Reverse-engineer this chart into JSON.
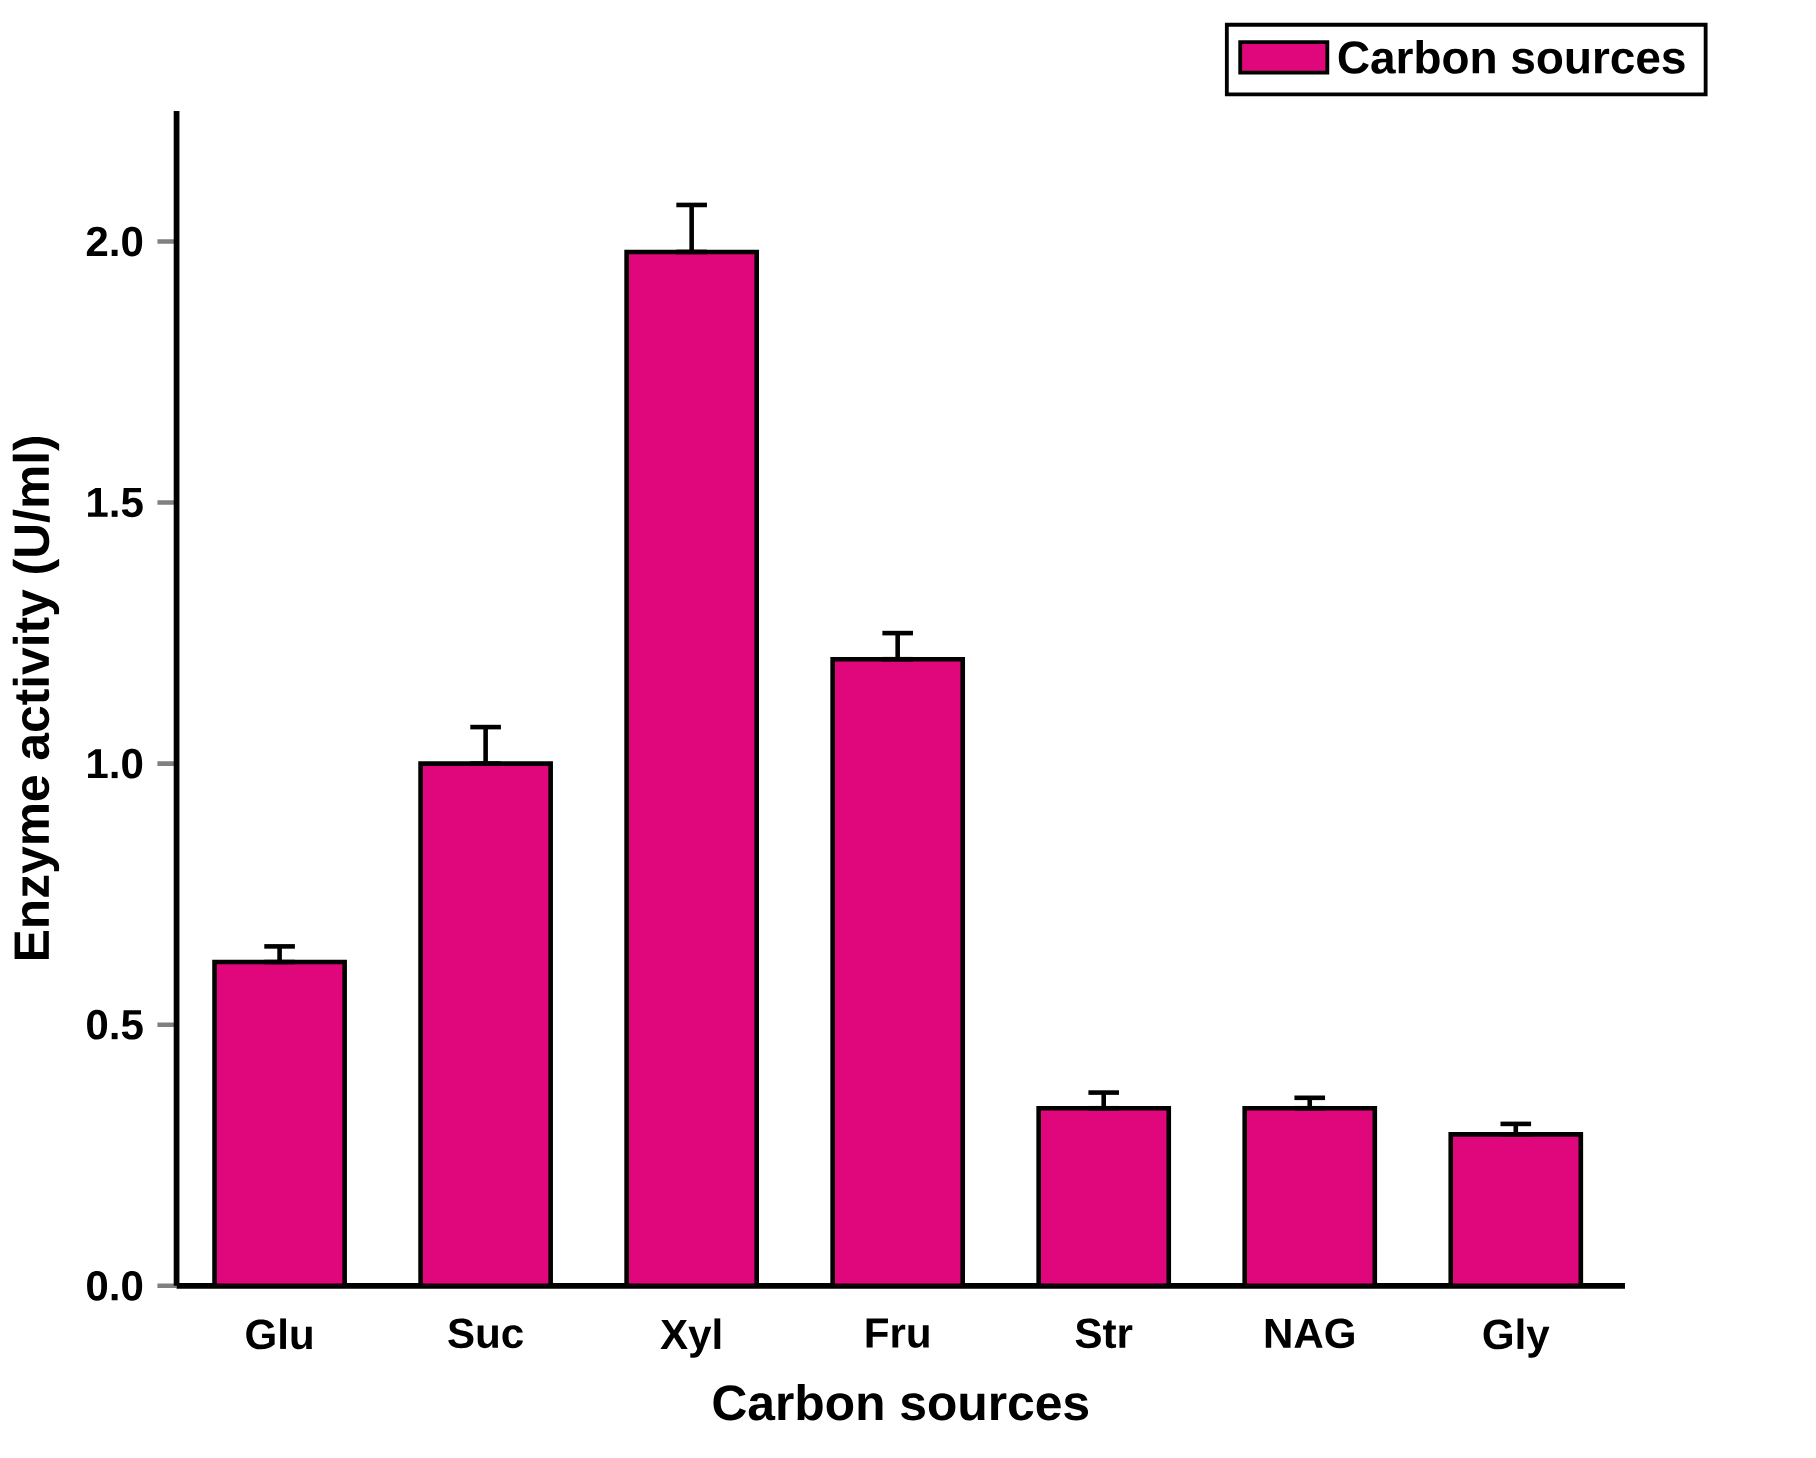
{
  "chart_data": {
    "type": "bar",
    "xlabel": "Carbon sources",
    "ylabel": "Enzyme activity (U/ml)",
    "categories": [
      "Glu",
      "Suc",
      "Xyl",
      "Fru",
      "Str",
      "NAG",
      "Gly"
    ],
    "series": [
      {
        "name": "Carbon sources",
        "color": "#e0077d",
        "values": [
          0.62,
          1.0,
          1.98,
          1.2,
          0.34,
          0.34,
          0.29
        ],
        "errors": [
          [
            0.62,
            0.65
          ],
          [
            1.0,
            1.07
          ],
          [
            1.98,
            2.07
          ],
          [
            1.2,
            1.25
          ],
          [
            0.34,
            0.37
          ],
          [
            0.34,
            0.36
          ],
          [
            0.29,
            0.31
          ]
        ]
      }
    ],
    "ylim": [
      0,
      2.25
    ],
    "yticks": [
      {
        "value": 0.0,
        "label": "0.0"
      },
      {
        "value": 0.5,
        "label": "0.5"
      },
      {
        "value": 1.0,
        "label": "1.0"
      },
      {
        "value": 1.5,
        "label": "1.5"
      },
      {
        "value": 2.0,
        "label": "2.0"
      }
    ],
    "legend": "top right",
    "grid": false
  }
}
